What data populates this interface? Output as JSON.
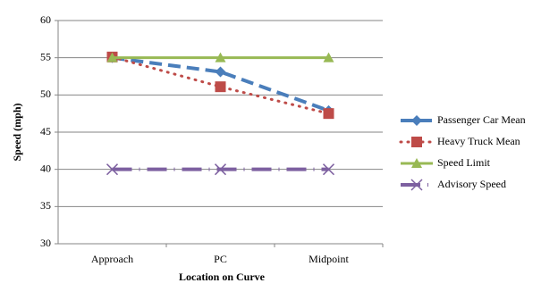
{
  "chart_data": {
    "type": "line",
    "x_label": "Location on Curve",
    "y_label": "Speed (mph)",
    "categories": [
      "Approach",
      "PC",
      "Midpoint"
    ],
    "series": [
      {
        "name": "Passenger Car Mean",
        "color": "#4a7ebb",
        "line_style": "dashed",
        "marker": "diamond",
        "values": [
          55,
          53.1,
          47.9
        ]
      },
      {
        "name": "Heavy Truck Mean",
        "color": "#be4b48",
        "line_style": "dotted",
        "marker": "square",
        "values": [
          55.1,
          51.1,
          47.5
        ]
      },
      {
        "name": "Speed Limit",
        "color": "#98b954",
        "line_style": "solid",
        "marker": "triangle",
        "values": [
          55,
          55,
          55
        ]
      },
      {
        "name": "Advisory Speed",
        "color": "#7d60a0",
        "line_style": "dash-dot",
        "marker": "x",
        "values": [
          40,
          40,
          40
        ]
      }
    ],
    "ylim": [
      30,
      60
    ],
    "yticks": [
      30,
      35,
      40,
      45,
      50,
      55,
      60
    ],
    "grid": true,
    "legend": "right"
  }
}
